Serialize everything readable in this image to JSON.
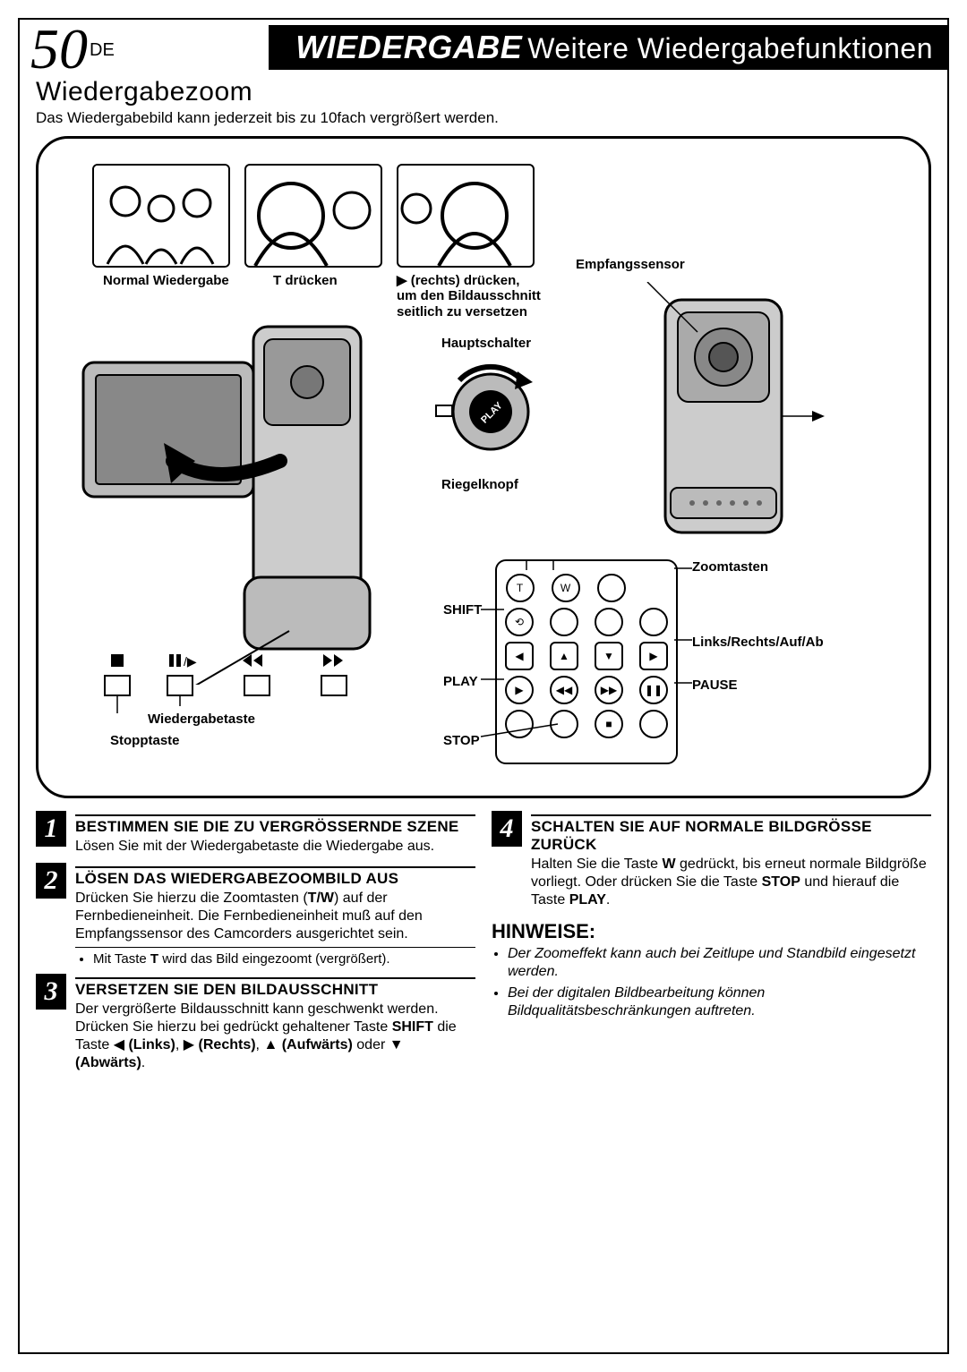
{
  "page_number": "50",
  "page_lang": "DE",
  "header_title_italic": "WIEDERGABE",
  "header_title_rest": "Weitere Wiedergabefunktionen",
  "section_title": "Wiedergabezoom",
  "intro_text": "Das Wiedergabebild kann jederzeit bis zu 10fach vergrößert werden.",
  "panel": {
    "thumb1_caption": "Normal Wiedergabe",
    "thumb2_caption": "T drücken",
    "thumb3_caption_1": "▶ (rechts) drücken,",
    "thumb3_caption_2": "um den Bildausschnitt",
    "thumb3_caption_3": "seitlich zu versetzen",
    "label_sensor": "Empfangssensor",
    "label_main_switch": "Hauptschalter",
    "label_lock": "Riegelknopf",
    "label_zoom": "Zoomtasten",
    "label_shift": "SHIFT",
    "label_dir": "Links/Rechts/Auf/Ab",
    "label_play": "PLAY",
    "label_pause": "PAUSE",
    "label_stop": "STOP",
    "label_pb_btn": "Wiedergabetaste",
    "label_stop_btn": "Stopptaste"
  },
  "steps": [
    {
      "n": "1",
      "h": "BESTIMMEN SIE DIE ZU VERGRÖS­SERNDE SZENE",
      "p": "Lösen Sie mit der Wiedergabetaste die Wiedergabe aus."
    },
    {
      "n": "2",
      "h": "LÖSEN DAS WIEDERGABEZOOMBILD AUS",
      "p": "Drücken Sie hierzu die Zoomtasten (<b>T/W</b>) auf der Fernbedieneinheit. Die Fernbedieneinheit muß auf den Empfangssensor des Camcorders ausgerichtet sein.",
      "bullet": "Mit Taste <b>T</b> wird das Bild eingezoomt (vergrößert)."
    },
    {
      "n": "3",
      "h": "VERSETZEN SIE DEN BILDAUSSCHNITT",
      "p": "Der vergrößerte Bildausschnitt kann geschwenkt werden. Drücken Sie hierzu bei gedrückt gehaltener Taste <b>SHIFT</b> die Taste ◀ <b>(Links)</b>, ▶ <b>(Rechts)</b>, ▲ <b>(Aufwärts)</b> oder ▼ <b>(Abwärts)</b>."
    },
    {
      "n": "4",
      "h": "SCHALTEN SIE AUF NORMALE BILDGRÖSSE ZURÜCK",
      "p": "Halten Sie die Taste <b>W</b> gedrückt, bis erneut normale Bildgröße vorliegt. Oder drücken Sie die Taste <b>STOP</b> und hierauf die Taste <b>PLAY</b>."
    }
  ],
  "hinweise_title": "HINWEISE:",
  "hinweise": [
    "Der Zoomeffekt kann auch bei Zeitlupe und Standbild eingesetzt werden.",
    "Bei der digitalen Bildbearbeitung können Bildqualitätsbeschränkungen auftreten."
  ],
  "colors": {
    "black": "#000000",
    "white": "#ffffff",
    "grey": "#d0d0d0"
  }
}
